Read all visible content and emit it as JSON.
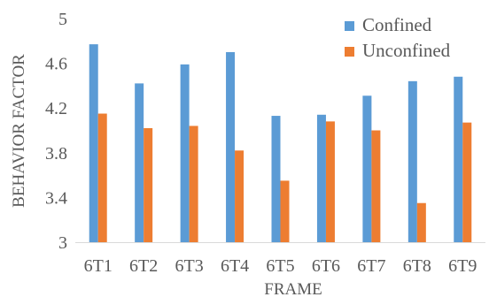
{
  "chart_data": {
    "type": "bar",
    "xlabel": "FRAME",
    "ylabel": "BEHAVIOR FACTOR",
    "ylim": [
      3,
      5
    ],
    "yticks": [
      "3",
      "3.4",
      "3.8",
      "4.2",
      "4.6",
      "5"
    ],
    "ytick_values": [
      3,
      3.4,
      3.8,
      4.2,
      4.6,
      5
    ],
    "grid": false,
    "legend_position": "top-right",
    "categories": [
      "6T1",
      "6T2",
      "6T3",
      "6T4",
      "6T5",
      "6T6",
      "6T7",
      "6T8",
      "6T9"
    ],
    "series": [
      {
        "name": "Confined",
        "color": "#5B9BD5",
        "values": [
          4.77,
          4.42,
          4.59,
          4.7,
          4.13,
          4.14,
          4.31,
          4.44,
          4.48
        ]
      },
      {
        "name": "Unconfined",
        "color": "#ED7D31",
        "values": [
          4.15,
          4.02,
          4.04,
          3.82,
          3.55,
          4.08,
          4.0,
          3.35,
          4.07
        ]
      }
    ]
  }
}
